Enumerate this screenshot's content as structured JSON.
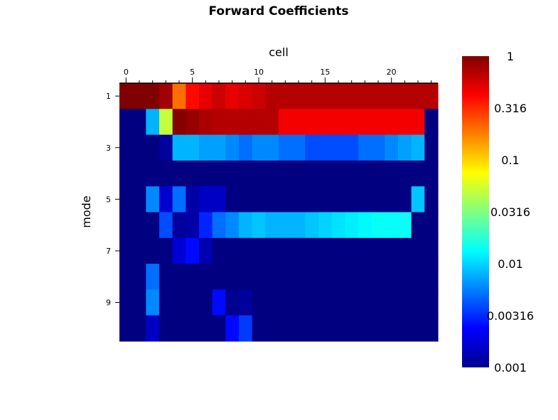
{
  "chart_data": {
    "type": "heatmap",
    "title": "Forward Coefficients",
    "xlabel": "cell",
    "ylabel": "mode",
    "x_ticks": [
      "0",
      "5",
      "10",
      "15",
      "20"
    ],
    "y_ticks": [
      "1",
      "3",
      "5",
      "7",
      "9"
    ],
    "x_tick_values": [
      0,
      5,
      10,
      15,
      20
    ],
    "y_tick_values": [
      1,
      3,
      5,
      7,
      9
    ],
    "n_cells": 24,
    "n_modes": 10,
    "colorscale": "jet",
    "color_scale_type": "log",
    "color_range": [
      0.001,
      1
    ],
    "colorbar_ticks": [
      "1",
      "0.316",
      "0.1",
      "0.0316",
      "0.01",
      "0.00316",
      "0.001"
    ],
    "colorbar_tick_values": [
      1,
      0.316,
      0.1,
      0.0316,
      0.01,
      0.00316,
      0.001
    ],
    "rows": [
      {
        "mode": 1,
        "values": [
          1,
          1,
          1,
          0.8,
          0.2,
          0.4,
          0.5,
          0.6,
          0.5,
          0.55,
          0.6,
          0.7,
          0.7,
          0.7,
          0.7,
          0.7,
          0.7,
          0.7,
          0.7,
          0.7,
          0.7,
          0.7,
          0.7,
          0.7
        ]
      },
      {
        "mode": 2,
        "values": [
          0.001,
          0.001,
          0.008,
          0.05,
          0.95,
          0.85,
          0.75,
          0.7,
          0.7,
          0.7,
          0.7,
          0.7,
          0.45,
          0.45,
          0.45,
          0.45,
          0.45,
          0.45,
          0.45,
          0.45,
          0.45,
          0.45,
          0.45,
          0.001
        ]
      },
      {
        "mode": 3,
        "values": [
          0.001,
          0.001,
          0.001,
          0.0012,
          0.008,
          0.008,
          0.007,
          0.007,
          0.006,
          0.005,
          0.006,
          0.006,
          0.005,
          0.005,
          0.004,
          0.004,
          0.004,
          0.004,
          0.005,
          0.005,
          0.006,
          0.007,
          0.008,
          0.001
        ]
      },
      {
        "mode": 4,
        "values": [
          0.001,
          0.001,
          0.001,
          0.001,
          0.001,
          0.001,
          0.001,
          0.001,
          0.001,
          0.001,
          0.001,
          0.001,
          0.001,
          0.001,
          0.001,
          0.001,
          0.001,
          0.001,
          0.001,
          0.001,
          0.001,
          0.001,
          0.001,
          0.001
        ]
      },
      {
        "mode": 5,
        "values": [
          0.001,
          0.001,
          0.006,
          0.0017,
          0.005,
          0.0013,
          0.0016,
          0.0016,
          0.001,
          0.001,
          0.001,
          0.001,
          0.001,
          0.001,
          0.001,
          0.001,
          0.001,
          0.001,
          0.001,
          0.001,
          0.001,
          0.001,
          0.009,
          0.001
        ]
      },
      {
        "mode": 6,
        "values": [
          0.001,
          0.001,
          0.001,
          0.004,
          0.0012,
          0.0013,
          0.003,
          0.005,
          0.006,
          0.008,
          0.009,
          0.008,
          0.008,
          0.008,
          0.009,
          0.01,
          0.011,
          0.012,
          0.013,
          0.014,
          0.014,
          0.014,
          0.001,
          0.001
        ]
      },
      {
        "mode": 7,
        "values": [
          0.001,
          0.001,
          0.001,
          0.001,
          0.0018,
          0.0025,
          0.0014,
          0.001,
          0.001,
          0.001,
          0.001,
          0.001,
          0.001,
          0.001,
          0.001,
          0.001,
          0.001,
          0.001,
          0.001,
          0.001,
          0.001,
          0.001,
          0.001,
          0.001
        ]
      },
      {
        "mode": 8,
        "values": [
          0.001,
          0.001,
          0.005,
          0.001,
          0.001,
          0.001,
          0.001,
          0.001,
          0.001,
          0.001,
          0.001,
          0.001,
          0.001,
          0.001,
          0.001,
          0.001,
          0.001,
          0.001,
          0.001,
          0.001,
          0.001,
          0.001,
          0.001,
          0.001
        ]
      },
      {
        "mode": 9,
        "values": [
          0.001,
          0.001,
          0.006,
          0.001,
          0.001,
          0.001,
          0.001,
          0.0025,
          0.0011,
          0.0012,
          0.001,
          0.001,
          0.001,
          0.001,
          0.001,
          0.001,
          0.001,
          0.001,
          0.001,
          0.001,
          0.001,
          0.001,
          0.001,
          0.001
        ]
      },
      {
        "mode": 10,
        "values": [
          0.001,
          0.001,
          0.0016,
          0.001,
          0.001,
          0.001,
          0.001,
          0.001,
          0.0025,
          0.0035,
          0.001,
          0.001,
          0.001,
          0.001,
          0.001,
          0.001,
          0.001,
          0.001,
          0.001,
          0.001,
          0.001,
          0.001,
          0.001,
          0.001
        ]
      }
    ]
  }
}
